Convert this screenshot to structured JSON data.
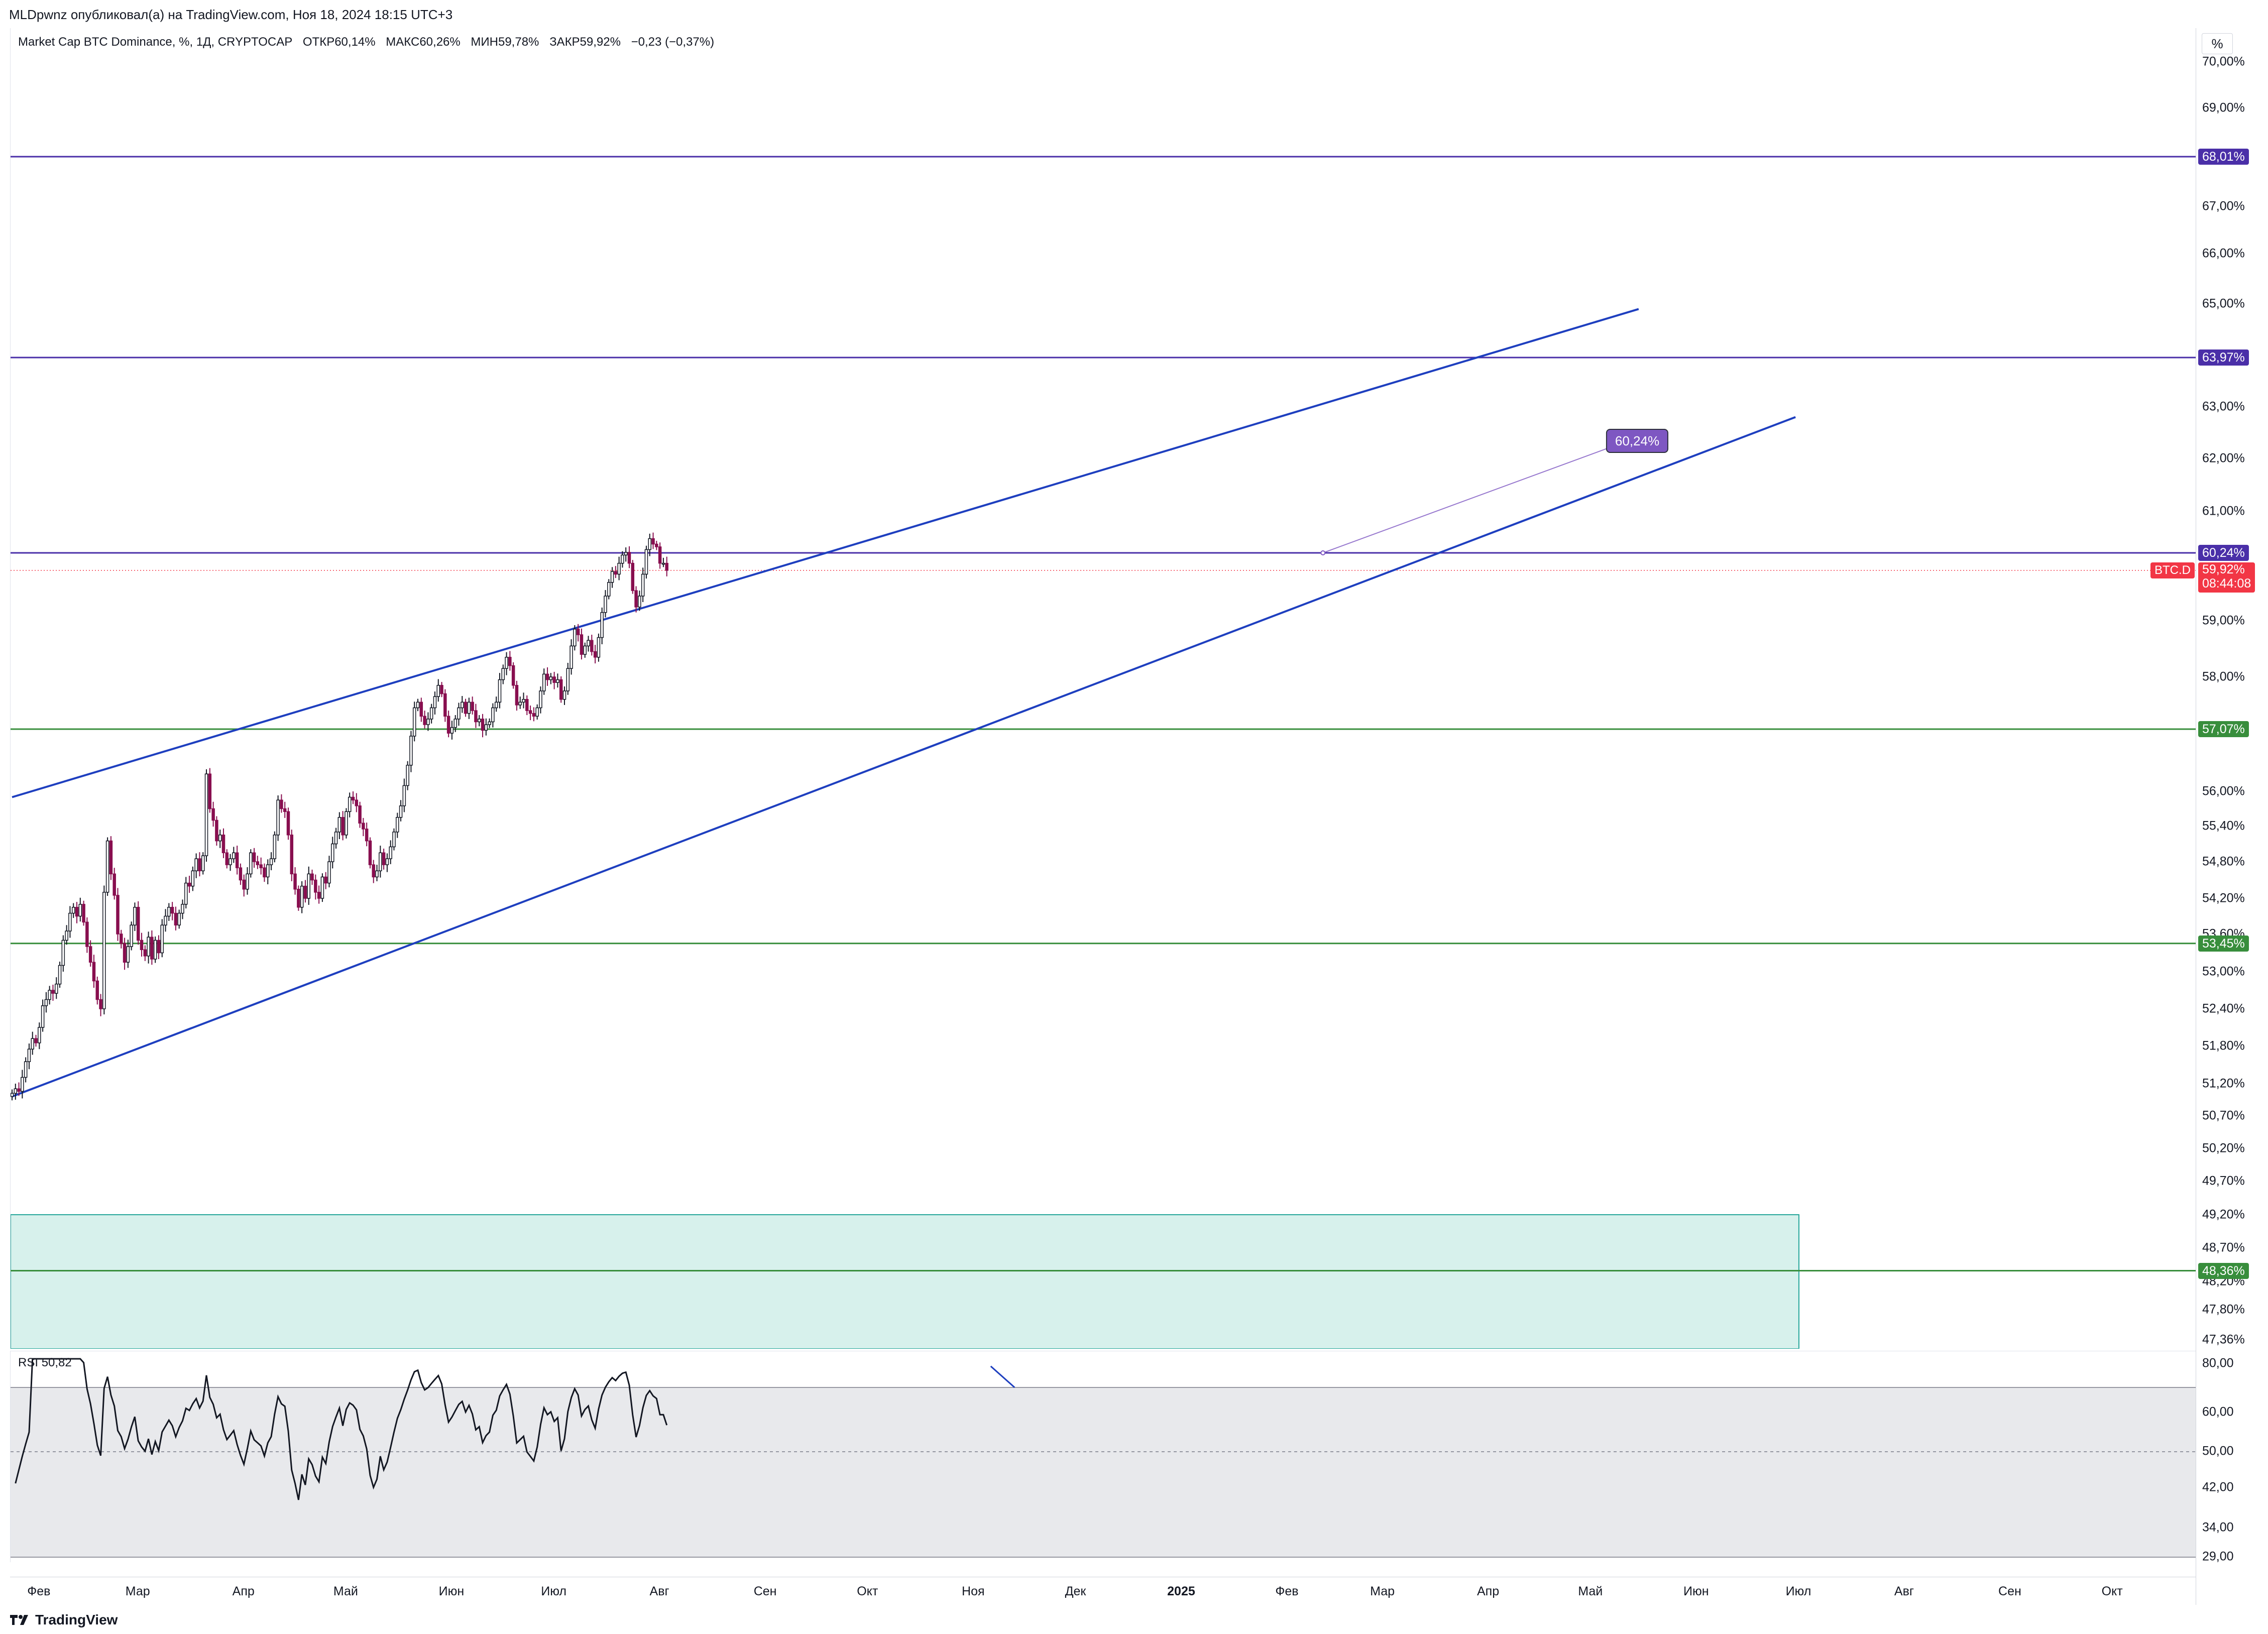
{
  "header": {
    "publisher_line": "MLDpwnz опубликовал(а) на TradingView.com, Ноя 18, 2024 18:15 UTC+3"
  },
  "legend": {
    "symbol": "Market Cap BTC Dominance, %, 1Д, CRYPTOCAP",
    "open": "ОТКР60,14%",
    "high": "МАКС60,26%",
    "low": "МИН59,78%",
    "close": "ЗАКР59,92%",
    "change": "−0,23 (−0,37%)"
  },
  "price_axis": {
    "unit_button": "%",
    "ticks": [
      "70,00%",
      "69,00%",
      "67,00%",
      "66,00%",
      "65,00%",
      "63,00%",
      "62,00%",
      "61,00%",
      "59,00%",
      "58,00%",
      "56,00%",
      "55,40%",
      "54,80%",
      "54,20%",
      "53,60%",
      "53,00%",
      "52,40%",
      "51,80%",
      "51,20%",
      "50,70%",
      "50,20%",
      "49,70%",
      "49,20%",
      "48,70%",
      "48,20%",
      "47,80%",
      "47,36%"
    ],
    "level_labels": [
      {
        "text": "68,01%",
        "color": "#4a2fa8"
      },
      {
        "text": "63,97%",
        "color": "#4a2fa8"
      },
      {
        "text": "60,24%",
        "color": "#4a2fa8"
      },
      {
        "text": "57,07%",
        "color": "#388e3c"
      },
      {
        "text": "53,45%",
        "color": "#388e3c"
      },
      {
        "text": "48,36%",
        "color": "#388e3c"
      }
    ],
    "last_price": "59,92%",
    "countdown": "08:44:08",
    "symbol_tag": "BTC.D"
  },
  "annotation": {
    "price_label": "60,24%"
  },
  "rsi": {
    "label": "RSI",
    "value": "50,82",
    "ticks": [
      "80,00",
      "60,00",
      "50,00",
      "42,00",
      "34,00",
      "29,00"
    ]
  },
  "time_axis": {
    "labels": [
      {
        "text": "Фев",
        "bold": false
      },
      {
        "text": "Мар",
        "bold": false
      },
      {
        "text": "Апр",
        "bold": false
      },
      {
        "text": "Май",
        "bold": false
      },
      {
        "text": "Июн",
        "bold": false
      },
      {
        "text": "Июл",
        "bold": false
      },
      {
        "text": "Авг",
        "bold": false
      },
      {
        "text": "Сен",
        "bold": false
      },
      {
        "text": "Окт",
        "bold": false
      },
      {
        "text": "Ноя",
        "bold": false
      },
      {
        "text": "Дек",
        "bold": false
      },
      {
        "text": "2025",
        "bold": true
      },
      {
        "text": "Фев",
        "bold": false
      },
      {
        "text": "Мар",
        "bold": false
      },
      {
        "text": "Апр",
        "bold": false
      },
      {
        "text": "Май",
        "bold": false
      },
      {
        "text": "Июн",
        "bold": false
      },
      {
        "text": "Июл",
        "bold": false
      },
      {
        "text": "Авг",
        "bold": false
      },
      {
        "text": "Сен",
        "bold": false
      },
      {
        "text": "Окт",
        "bold": false
      }
    ]
  },
  "footer": {
    "brand": "TradingView"
  },
  "colors": {
    "channel": "#1e3fbf",
    "resistance": "#4a2fa8",
    "support": "#388e3c",
    "up_candle": "#131722",
    "down_candle": "#880e4f",
    "zone_fill": "#d7f1ec",
    "zone_border": "#26a69a",
    "rsi_band": "#e8e9ec",
    "last_price": "#f23645",
    "annotation": "#7e57c2"
  },
  "chart_data": {
    "type": "candlestick",
    "symbol": "Market Cap BTC Dominance, %, 1Д, CRYPTOCAP",
    "y_range": [
      47.2,
      70.3
    ],
    "horizontal_levels": [
      68.01,
      63.97,
      60.24,
      57.07,
      53.45,
      48.36
    ],
    "last_close": 59.92,
    "trend_channel": {
      "upper": {
        "start": [
          "2024-01-24",
          55.9
        ],
        "end": [
          "2025-05-15",
          64.9
        ]
      },
      "lower": {
        "start": [
          "2024-01-24",
          51.0
        ],
        "end": [
          "2025-06-30",
          62.8
        ]
      }
    },
    "demand_zone": {
      "from": 47.2,
      "to": 49.2,
      "until": "2025-07-01"
    },
    "daily_closes_start": "2024-01-24",
    "daily_closes": [
      51.05,
      51.12,
      51.08,
      51.3,
      51.55,
      51.75,
      51.92,
      51.85,
      52.1,
      52.45,
      52.55,
      52.7,
      52.65,
      52.8,
      53.1,
      53.5,
      53.65,
      53.95,
      54.05,
      53.9,
      54.1,
      53.8,
      53.4,
      53.15,
      52.85,
      52.55,
      52.4,
      54.3,
      55.15,
      54.6,
      54.25,
      53.6,
      53.45,
      53.15,
      53.4,
      53.75,
      54.05,
      53.5,
      53.35,
      53.25,
      53.55,
      53.2,
      53.5,
      53.3,
      53.75,
      53.9,
      54.05,
      53.95,
      53.75,
      53.95,
      54.1,
      54.45,
      54.4,
      54.65,
      54.85,
      54.65,
      54.9,
      56.3,
      55.7,
      55.5,
      55.15,
      55.25,
      54.95,
      54.75,
      54.85,
      54.95,
      54.7,
      54.5,
      54.35,
      54.6,
      54.95,
      54.8,
      54.75,
      54.7,
      54.55,
      54.75,
      54.85,
      55.25,
      55.85,
      55.7,
      55.65,
      55.25,
      54.6,
      54.35,
      54.05,
      54.4,
      54.2,
      54.6,
      54.5,
      54.3,
      54.2,
      54.55,
      54.45,
      54.8,
      55.1,
      55.3,
      55.55,
      55.25,
      55.65,
      55.9,
      55.85,
      55.75,
      55.45,
      55.35,
      55.15,
      54.75,
      54.55,
      54.65,
      54.95,
      54.75,
      54.85,
      55.05,
      55.3,
      55.55,
      55.75,
      56.1,
      56.45,
      56.95,
      57.45,
      57.55,
      57.3,
      57.15,
      57.25,
      57.45,
      57.65,
      57.85,
      57.7,
      57.3,
      57.0,
      57.1,
      57.25,
      57.45,
      57.55,
      57.35,
      57.55,
      57.4,
      57.2,
      57.25,
      57.05,
      57.15,
      57.2,
      57.45,
      57.55,
      57.95,
      58.15,
      58.35,
      58.2,
      57.85,
      57.5,
      57.55,
      57.6,
      57.4,
      57.35,
      57.3,
      57.45,
      57.75,
      58.05,
      57.95,
      58.0,
      57.9,
      57.95,
      57.6,
      57.75,
      58.15,
      58.55,
      58.85,
      58.75,
      58.4,
      58.55,
      58.65,
      58.45,
      58.35,
      58.7,
      59.15,
      59.45,
      59.7,
      59.9,
      59.85,
      60.05,
      60.2,
      60.25,
      60.05,
      59.55,
      59.25,
      59.45,
      59.85,
      60.3,
      60.5,
      60.4,
      60.35,
      60.05,
      60.05,
      59.92
    ]
  }
}
